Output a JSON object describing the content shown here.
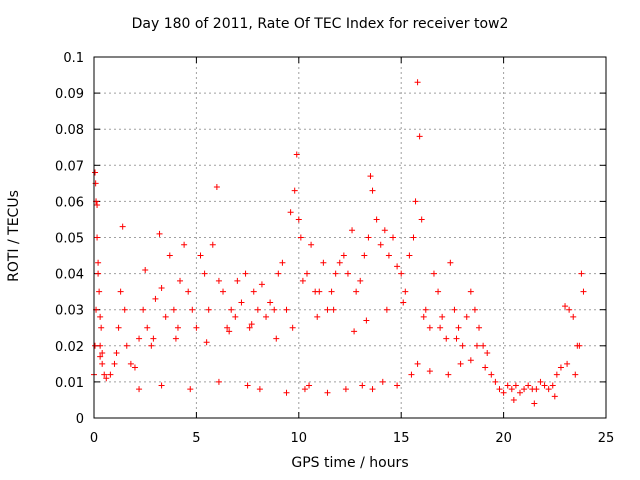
{
  "chart_data": {
    "type": "scatter",
    "title": "Day 180 of 2011, Rate Of TEC Index for receiver tow2",
    "xlabel": "GPS time / hours",
    "ylabel": "ROTI / TECUs",
    "xlim": [
      0,
      25
    ],
    "ylim": [
      0,
      0.1
    ],
    "x_ticks": [
      "0",
      "5",
      "10",
      "15",
      "20",
      "25"
    ],
    "y_ticks": [
      "0",
      "0.01",
      "0.02",
      "0.03",
      "0.04",
      "0.05",
      "0.06",
      "0.07",
      "0.08",
      "0.09",
      "0.1"
    ],
    "grid": true,
    "legend": "none",
    "marker": "+",
    "color": "#ff0000",
    "series": [
      {
        "x": [
          0.0,
          0.05,
          0.08,
          0.1,
          0.15,
          0.2,
          0.25,
          0.3,
          0.35,
          0.4,
          0.5,
          0.6,
          0.05,
          0.1,
          0.15,
          0.2,
          0.3,
          0.4,
          0.8,
          1.0,
          1.2,
          1.3,
          1.4,
          1.5,
          1.6,
          1.8,
          2.0,
          2.2,
          2.4,
          2.5,
          2.6,
          2.8,
          3.0,
          3.2,
          3.3,
          3.5,
          3.7,
          3.9,
          4.0,
          4.2,
          4.4,
          4.6,
          4.8,
          5.0,
          5.2,
          5.4,
          5.6,
          5.8,
          6.0,
          6.1,
          6.3,
          6.5,
          6.7,
          6.9,
          7.0,
          7.2,
          7.4,
          7.6,
          7.8,
          8.0,
          8.2,
          8.4,
          8.6,
          8.8,
          9.0,
          9.2,
          9.4,
          9.6,
          9.8,
          9.9,
          10.0,
          10.1,
          10.2,
          10.4,
          10.6,
          10.8,
          11.0,
          11.2,
          11.4,
          11.6,
          11.8,
          12.0,
          12.2,
          12.4,
          12.6,
          12.8,
          13.0,
          13.2,
          13.4,
          13.5,
          13.6,
          13.8,
          14.0,
          14.2,
          14.4,
          14.6,
          14.8,
          15.0,
          15.2,
          15.4,
          15.6,
          15.7,
          15.8,
          15.9,
          16.0,
          16.2,
          16.4,
          16.6,
          16.8,
          17.0,
          17.2,
          17.4,
          17.6,
          17.8,
          18.0,
          18.2,
          18.4,
          18.6,
          18.8,
          19.0,
          19.2,
          19.4,
          19.6,
          19.8,
          20.0,
          20.2,
          20.4,
          20.6,
          20.8,
          21.0,
          21.2,
          21.4,
          21.6,
          21.8,
          22.0,
          22.2,
          22.4,
          22.6,
          22.8,
          23.0,
          23.2,
          23.4,
          23.6,
          23.8,
          23.9,
          2.2,
          3.3,
          4.7,
          6.1,
          7.5,
          8.1,
          9.4,
          10.3,
          10.5,
          11.4,
          12.3,
          13.1,
          13.6,
          14.1,
          14.8,
          15.5,
          15.8,
          16.4,
          17.3,
          17.9,
          18.4,
          19.1,
          0.3,
          1.1,
          2.9,
          4.1,
          5.5,
          6.6,
          7.7,
          8.9,
          9.7,
          10.9,
          11.7,
          12.7,
          13.3,
          14.3,
          15.1,
          16.1,
          16.9,
          17.7,
          18.7,
          20.5,
          21.5,
          22.5,
          23.1,
          23.5,
          23.7
        ],
        "y": [
          0.012,
          0.068,
          0.065,
          0.06,
          0.059,
          0.043,
          0.035,
          0.028,
          0.025,
          0.018,
          0.012,
          0.011,
          0.02,
          0.03,
          0.05,
          0.04,
          0.017,
          0.015,
          0.012,
          0.015,
          0.025,
          0.035,
          0.053,
          0.03,
          0.02,
          0.015,
          0.014,
          0.022,
          0.03,
          0.041,
          0.025,
          0.02,
          0.033,
          0.051,
          0.036,
          0.028,
          0.045,
          0.03,
          0.022,
          0.038,
          0.048,
          0.035,
          0.03,
          0.025,
          0.045,
          0.04,
          0.03,
          0.048,
          0.064,
          0.038,
          0.035,
          0.025,
          0.03,
          0.028,
          0.038,
          0.032,
          0.04,
          0.025,
          0.035,
          0.03,
          0.037,
          0.028,
          0.032,
          0.03,
          0.04,
          0.043,
          0.03,
          0.057,
          0.063,
          0.073,
          0.055,
          0.05,
          0.038,
          0.04,
          0.048,
          0.035,
          0.035,
          0.043,
          0.03,
          0.035,
          0.04,
          0.043,
          0.045,
          0.04,
          0.052,
          0.035,
          0.038,
          0.045,
          0.05,
          0.067,
          0.063,
          0.055,
          0.048,
          0.052,
          0.045,
          0.05,
          0.042,
          0.04,
          0.035,
          0.045,
          0.05,
          0.06,
          0.093,
          0.078,
          0.055,
          0.03,
          0.025,
          0.04,
          0.035,
          0.028,
          0.022,
          0.043,
          0.03,
          0.025,
          0.02,
          0.028,
          0.035,
          0.03,
          0.025,
          0.02,
          0.018,
          0.012,
          0.01,
          0.008,
          0.007,
          0.009,
          0.008,
          0.009,
          0.007,
          0.008,
          0.009,
          0.008,
          0.008,
          0.01,
          0.009,
          0.008,
          0.009,
          0.012,
          0.014,
          0.031,
          0.03,
          0.028,
          0.02,
          0.04,
          0.035,
          0.008,
          0.009,
          0.008,
          0.01,
          0.009,
          0.008,
          0.007,
          0.008,
          0.009,
          0.007,
          0.008,
          0.009,
          0.008,
          0.01,
          0.009,
          0.012,
          0.015,
          0.013,
          0.012,
          0.015,
          0.016,
          0.014,
          0.02,
          0.018,
          0.022,
          0.025,
          0.021,
          0.024,
          0.026,
          0.022,
          0.025,
          0.028,
          0.03,
          0.024,
          0.027,
          0.03,
          0.032,
          0.028,
          0.025,
          0.022,
          0.02,
          0.005,
          0.004,
          0.006,
          0.015,
          0.012,
          0.02
        ]
      }
    ]
  }
}
